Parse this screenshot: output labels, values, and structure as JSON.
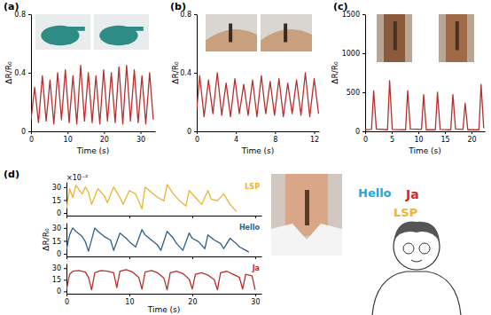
{
  "chart_data": [
    {
      "type": "line",
      "title": "(a)",
      "x_label": "Time (s)",
      "y_label": "ΔR/R₀",
      "xlim": [
        0,
        34
      ],
      "ylim": [
        0,
        0.8
      ],
      "xticks": [
        0,
        10,
        20,
        30
      ],
      "yticks": [
        0,
        0.4,
        0.8
      ],
      "x": [
        0,
        1.0,
        2.05,
        3.1,
        4.15,
        5.2,
        6.25,
        7.3,
        8.35,
        9.4,
        10.45,
        11.5,
        12.55,
        13.6,
        14.65,
        15.7,
        16.75,
        17.8,
        18.85,
        19.9,
        20.95,
        22.0,
        23.05,
        24.1,
        25.15,
        26.2,
        27.25,
        28.3,
        29.35,
        30.4,
        31.45,
        32.5,
        33.5
      ],
      "series": [
        {
          "color": "#b5302e",
          "values": [
            0.08,
            0.3,
            0.06,
            0.38,
            0.07,
            0.35,
            0.05,
            0.4,
            0.08,
            0.42,
            0.06,
            0.38,
            0.05,
            0.45,
            0.07,
            0.4,
            0.06,
            0.38,
            0.05,
            0.42,
            0.07,
            0.4,
            0.06,
            0.44,
            0.05,
            0.45,
            0.07,
            0.42,
            0.06,
            0.38,
            0.05,
            0.4,
            0.08
          ]
        }
      ]
    },
    {
      "type": "line",
      "title": "(b)",
      "x_label": "Time (s)",
      "y_label": "ΔR/R₀",
      "xlim": [
        0,
        12.5
      ],
      "ylim": [
        0,
        0.8
      ],
      "xticks": [
        0,
        4,
        8,
        12
      ],
      "yticks": [
        0,
        0.4,
        0.8
      ],
      "x": [
        0,
        0.3,
        0.75,
        1.2,
        1.65,
        2.1,
        2.55,
        3.0,
        3.45,
        3.9,
        4.35,
        4.8,
        5.25,
        5.7,
        6.15,
        6.6,
        7.05,
        7.5,
        7.95,
        8.4,
        8.85,
        9.3,
        9.75,
        10.2,
        10.65,
        11.1,
        11.55,
        12.0,
        12.45
      ],
      "series": [
        {
          "color": "#b5302e",
          "values": [
            0.15,
            0.38,
            0.1,
            0.35,
            0.12,
            0.4,
            0.11,
            0.33,
            0.1,
            0.36,
            0.12,
            0.32,
            0.11,
            0.35,
            0.1,
            0.38,
            0.12,
            0.34,
            0.11,
            0.36,
            0.1,
            0.33,
            0.12,
            0.35,
            0.11,
            0.4,
            0.1,
            0.36,
            0.12
          ]
        }
      ]
    },
    {
      "type": "line",
      "title": "(c)",
      "x_label": "Time (s)",
      "y_label": "ΔR/R₀",
      "xlim": [
        0,
        22.5
      ],
      "ylim": [
        0,
        1500
      ],
      "xticks": [
        0,
        5,
        10,
        15,
        20
      ],
      "yticks": [
        0,
        500,
        1000,
        1500
      ],
      "x": [
        0,
        1.2,
        1.6,
        2.1,
        4.2,
        4.6,
        5.1,
        7.6,
        8.0,
        8.5,
        10.6,
        11.0,
        11.5,
        13.2,
        13.6,
        14.1,
        16.1,
        16.5,
        17.0,
        18.4,
        18.8,
        19.3,
        21.4,
        21.8,
        22.3
      ],
      "series": [
        {
          "color": "#b5302e",
          "values": [
            20,
            25,
            520,
            30,
            20,
            650,
            25,
            20,
            520,
            30,
            25,
            470,
            20,
            20,
            500,
            25,
            20,
            470,
            30,
            25,
            360,
            20,
            20,
            600,
            40
          ]
        }
      ]
    },
    {
      "type": "line",
      "title": "(d)",
      "annotation": "×10⁻²",
      "tick_labels": "y",
      "xlim": [
        0,
        31
      ],
      "ylim": [
        -3,
        36
      ],
      "xticks": [
        0,
        10,
        20,
        30
      ],
      "yticks": [
        0,
        15,
        30
      ],
      "x": [
        0,
        0.5,
        1.0,
        1.5,
        2.5,
        3.0,
        3.5,
        4.0,
        5.0,
        6.0,
        6.5,
        7.5,
        8.5,
        9.0,
        10.0,
        11.0,
        12.0,
        12.5,
        13.5,
        14.5,
        15.5,
        16.0,
        17.0,
        18.0,
        19.0,
        19.5,
        20.5,
        21.5,
        22.5,
        23.0,
        24.0,
        25.0,
        26.0,
        27.0
      ],
      "series": [
        {
          "name": "LSP",
          "color": "#eab431",
          "values": [
            5,
            28,
            18,
            32,
            22,
            30,
            24,
            10,
            28,
            20,
            12,
            30,
            18,
            10,
            26,
            22,
            5,
            30,
            24,
            18,
            14,
            33,
            22,
            14,
            8,
            26,
            18,
            10,
            26,
            16,
            14,
            22,
            10,
            2
          ]
        }
      ]
    },
    {
      "type": "line",
      "y_label": "ΔR/R₀",
      "tick_labels": "y",
      "xlim": [
        0,
        31
      ],
      "ylim": [
        -3,
        36
      ],
      "xticks": [
        0,
        10,
        20,
        30
      ],
      "yticks": [
        0,
        15,
        30
      ],
      "x": [
        0,
        0.5,
        1.0,
        1.5,
        2.5,
        3.0,
        3.5,
        4.5,
        5.0,
        6.0,
        7.0,
        7.5,
        8.5,
        9.5,
        10.0,
        11.0,
        12.0,
        12.5,
        13.5,
        14.5,
        15.0,
        16.0,
        17.0,
        17.5,
        18.5,
        19.5,
        20.0,
        21.0,
        22.0,
        22.5,
        23.5,
        24.5,
        25.0,
        26.0,
        27.0,
        27.5,
        28.5,
        29.0
      ],
      "series": [
        {
          "name": "Hello",
          "color": "#2f5f8a",
          "values": [
            5,
            22,
            30,
            26,
            20,
            14,
            3,
            30,
            26,
            20,
            16,
            4,
            24,
            18,
            14,
            8,
            28,
            22,
            16,
            10,
            4,
            26,
            18,
            12,
            4,
            24,
            18,
            14,
            6,
            22,
            16,
            12,
            6,
            18,
            12,
            8,
            4,
            2
          ]
        }
      ]
    },
    {
      "type": "line",
      "x_label": "Time (s)",
      "xlim": [
        0,
        31
      ],
      "ylim": [
        -3,
        36
      ],
      "xticks": [
        0,
        10,
        20,
        30
      ],
      "yticks": [
        0,
        15,
        30
      ],
      "x": [
        0,
        0.5,
        1.0,
        2.0,
        3.0,
        3.5,
        4.0,
        4.5,
        5.5,
        6.5,
        7.5,
        8.0,
        8.5,
        9.5,
        10.5,
        11.5,
        12.0,
        12.5,
        13.5,
        14.5,
        15.5,
        16.0,
        16.5,
        17.5,
        18.5,
        19.5,
        20.0,
        20.5,
        21.5,
        22.5,
        23.5,
        24.0,
        24.5,
        25.5,
        26.5,
        27.5,
        28.0,
        28.5,
        29.5,
        30.0
      ],
      "series": [
        {
          "name": "Ja",
          "color": "#b5302e",
          "values": [
            2,
            22,
            26,
            27,
            25,
            18,
            2,
            24,
            27,
            26,
            24,
            5,
            26,
            28,
            25,
            18,
            3,
            25,
            27,
            24,
            17,
            2,
            24,
            26,
            23,
            16,
            3,
            22,
            24,
            21,
            15,
            2,
            24,
            26,
            22,
            18,
            3,
            22,
            20,
            2
          ]
        }
      ]
    }
  ],
  "illustration": {
    "words": [
      {
        "text": "Hello",
        "color": "#29a3dd"
      },
      {
        "text": "Ja",
        "color": "#d7262b"
      },
      {
        "text": "LSP",
        "color": "#f2b32c"
      }
    ]
  }
}
